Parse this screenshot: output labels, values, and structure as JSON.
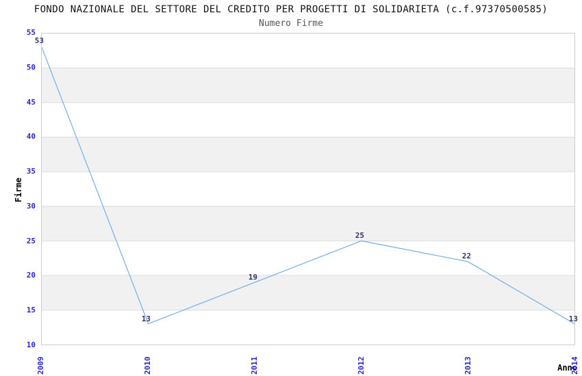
{
  "chart_data": {
    "type": "line",
    "title": "FONDO NAZIONALE DEL SETTORE DEL CREDITO PER PROGETTI DI SOLIDARIETA (c.f.97370500585)",
    "subtitle": "Numero Firme",
    "xlabel": "Anno",
    "ylabel": "Firme",
    "categories": [
      "2009",
      "2010",
      "2011",
      "2012",
      "2013",
      "2014"
    ],
    "values": [
      53,
      13,
      19,
      25,
      22,
      13
    ],
    "data_labels": [
      "53",
      "13",
      "19",
      "25",
      "22",
      "13"
    ],
    "ylim": [
      10,
      55
    ],
    "ytick_step": 5,
    "grid": "horizontal-bands-alternating",
    "legend": "none",
    "colors": {
      "line": "#7FB3E6",
      "band_gray": "#F1F1F1",
      "band_white": "#FFFFFF",
      "gridline": "#DCDCDC",
      "plot_border": "#CCCCCC",
      "tick_label": "#2828CC",
      "data_label": "#333366",
      "title": "#111111",
      "subtitle": "#555555",
      "axis_title": "#000000"
    }
  }
}
